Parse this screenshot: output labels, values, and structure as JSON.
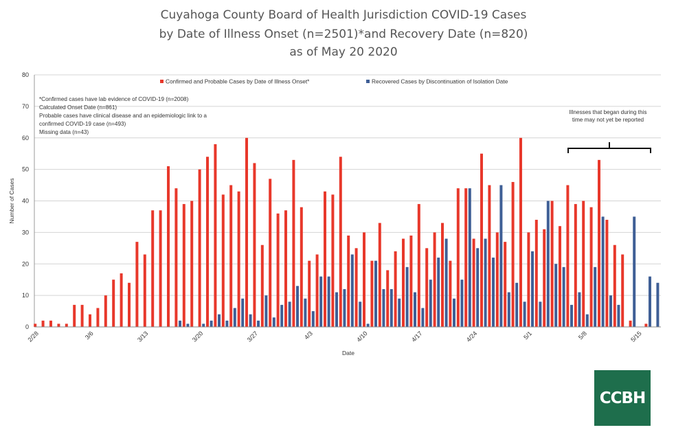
{
  "title": {
    "line1": "Cuyahoga County Board of Health Jurisdiction COVID-19 Cases",
    "line2": "by Date of Illness Onset (n=2501)*and Recovery Date (n=820)",
    "line3": "as of May 20 2020"
  },
  "notes": [
    "*Confirmed  cases have lab evidence of COVID-19 (n=2008)",
    "Calculated  Onset Date (n=861)",
    "Probable  cases have clinical disease  and an epidemiologic  link to a",
    "confirmed  COVID-19 case (n=493)",
    "Missing data (n=43)"
  ],
  "annotation": {
    "line1": "Illnesses that began during  this",
    "line2": "time may not yet be reported"
  },
  "logo": "CCBH",
  "colors": {
    "confirmed": "#e8382b",
    "recovered": "#3f5f96",
    "grid": "#d4d4d4",
    "logo": "#1e6e4c"
  },
  "chart_data": {
    "type": "bar",
    "xlabel": "Date",
    "ylabel": "Number of Cases",
    "ylim": [
      0,
      80
    ],
    "yticks": [
      0,
      10,
      20,
      30,
      40,
      50,
      60,
      70,
      80
    ],
    "xticks": [
      {
        "day": 0,
        "label": "2/28"
      },
      {
        "day": 7,
        "label": "3/6"
      },
      {
        "day": 14,
        "label": "3/13"
      },
      {
        "day": 21,
        "label": "3/20"
      },
      {
        "day": 28,
        "label": "3/27"
      },
      {
        "day": 35,
        "label": "4/3"
      },
      {
        "day": 42,
        "label": "4/10"
      },
      {
        "day": 49,
        "label": "4/17"
      },
      {
        "day": 56,
        "label": "4/24"
      },
      {
        "day": 63,
        "label": "5/1"
      },
      {
        "day": 70,
        "label": "5/8"
      },
      {
        "day": 77,
        "label": "5/15"
      }
    ],
    "series": [
      {
        "name": "Confirmed and Probable Cases by Date of Illness Onset*",
        "values": [
          1,
          2,
          2,
          1,
          1,
          7,
          7,
          4,
          6,
          10,
          15,
          17,
          14,
          27,
          23,
          37,
          37,
          51,
          44,
          39,
          40,
          50,
          54,
          58,
          42,
          45,
          43,
          60,
          52,
          26,
          47,
          36,
          37,
          53,
          38,
          21,
          23,
          43,
          42,
          54,
          29,
          25,
          30,
          21,
          33,
          18,
          24,
          28,
          29,
          39,
          25,
          30,
          33,
          21,
          44,
          44,
          28,
          55,
          45,
          30,
          27,
          46,
          60,
          30,
          34,
          31,
          40,
          32,
          45,
          39,
          40,
          38,
          53,
          34,
          26,
          23,
          2,
          0,
          1,
          0
        ]
      },
      {
        "name": "Recovered Cases by Discontinuation of Isolation Date",
        "values": [
          0,
          0,
          0,
          0,
          0,
          0,
          0,
          0,
          0,
          0,
          0,
          0,
          0,
          0,
          0,
          0,
          0,
          0,
          0,
          2,
          1,
          0,
          1,
          2,
          4,
          2,
          6,
          9,
          4,
          2,
          10,
          3,
          7,
          8,
          13,
          9,
          5,
          16,
          16,
          11,
          12,
          23,
          8,
          1,
          21,
          12,
          12,
          9,
          19,
          11,
          6,
          15,
          22,
          28,
          9,
          15,
          44,
          25,
          28,
          22,
          45,
          11,
          14,
          8,
          24,
          8,
          40,
          20,
          19,
          7,
          11,
          4,
          19,
          35,
          10,
          7,
          0,
          35,
          0,
          16,
          14
        ]
      }
    ],
    "legend_position": "top"
  }
}
